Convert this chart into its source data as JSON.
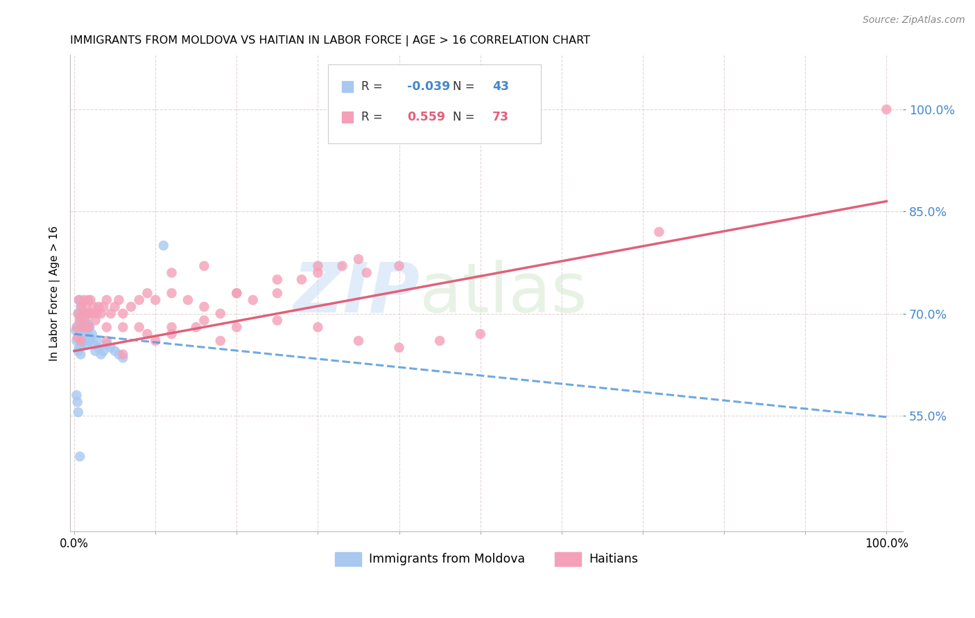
{
  "title": "IMMIGRANTS FROM MOLDOVA VS HAITIAN IN LABOR FORCE | AGE > 16 CORRELATION CHART",
  "source": "Source: ZipAtlas.com",
  "ylabel": "In Labor Force | Age > 16",
  "watermark_zip": "ZIP",
  "watermark_atlas": "atlas",
  "xlim": [
    -0.005,
    1.02
  ],
  "ylim": [
    0.38,
    1.08
  ],
  "yticks": [
    0.55,
    0.7,
    0.85,
    1.0
  ],
  "ytick_labels": [
    "55.0%",
    "70.0%",
    "85.0%",
    "100.0%"
  ],
  "xtick_vals": [
    0.0,
    0.1,
    0.2,
    0.3,
    0.4,
    0.5,
    0.6,
    0.7,
    0.8,
    0.9,
    1.0
  ],
  "xtick_labels": [
    "0.0%",
    "",
    "",
    "",
    "",
    "",
    "",
    "",
    "",
    "",
    "100.0%"
  ],
  "legend_R_moldova": "-0.039",
  "legend_N_moldova": "43",
  "legend_R_haitian": "0.559",
  "legend_N_haitian": "73",
  "color_moldova": "#a8c8f0",
  "color_haitian": "#f4a0b8",
  "line_color_moldova": "#5599dd",
  "line_color_haitian": "#e0607a",
  "moldova_line_y0": 0.67,
  "moldova_line_y1": 0.548,
  "haitian_line_y0": 0.645,
  "haitian_line_y1": 0.865,
  "moldova_x": [
    0.002,
    0.003,
    0.004,
    0.005,
    0.005,
    0.006,
    0.006,
    0.007,
    0.007,
    0.008,
    0.008,
    0.009,
    0.009,
    0.01,
    0.01,
    0.011,
    0.012,
    0.012,
    0.013,
    0.014,
    0.015,
    0.016,
    0.017,
    0.018,
    0.019,
    0.02,
    0.022,
    0.024,
    0.026,
    0.028,
    0.03,
    0.033,
    0.036,
    0.04,
    0.045,
    0.05,
    0.055,
    0.06,
    0.003,
    0.004,
    0.005,
    0.007,
    0.11
  ],
  "moldova_y": [
    0.675,
    0.66,
    0.68,
    0.645,
    0.7,
    0.65,
    0.72,
    0.67,
    0.69,
    0.64,
    0.71,
    0.655,
    0.69,
    0.665,
    0.7,
    0.68,
    0.66,
    0.7,
    0.675,
    0.685,
    0.67,
    0.655,
    0.685,
    0.66,
    0.68,
    0.665,
    0.67,
    0.655,
    0.645,
    0.66,
    0.65,
    0.64,
    0.645,
    0.655,
    0.65,
    0.645,
    0.64,
    0.635,
    0.58,
    0.57,
    0.555,
    0.49,
    0.8
  ],
  "haitian_x": [
    0.003,
    0.004,
    0.005,
    0.006,
    0.007,
    0.008,
    0.009,
    0.01,
    0.011,
    0.012,
    0.013,
    0.014,
    0.015,
    0.016,
    0.017,
    0.018,
    0.019,
    0.02,
    0.022,
    0.024,
    0.026,
    0.028,
    0.03,
    0.033,
    0.036,
    0.04,
    0.045,
    0.05,
    0.055,
    0.06,
    0.07,
    0.08,
    0.09,
    0.1,
    0.12,
    0.14,
    0.16,
    0.18,
    0.2,
    0.22,
    0.25,
    0.28,
    0.3,
    0.33,
    0.36,
    0.4,
    0.35,
    0.4,
    0.45,
    0.5,
    0.04,
    0.06,
    0.08,
    0.1,
    0.12,
    0.15,
    0.18,
    0.2,
    0.25,
    0.3,
    0.12,
    0.16,
    0.2,
    0.25,
    0.3,
    0.35,
    0.04,
    0.06,
    0.09,
    0.12,
    0.16,
    0.72,
    1.0
  ],
  "haitian_y": [
    0.68,
    0.665,
    0.7,
    0.72,
    0.69,
    0.66,
    0.71,
    0.68,
    0.7,
    0.72,
    0.69,
    0.71,
    0.68,
    0.7,
    0.72,
    0.68,
    0.7,
    0.72,
    0.7,
    0.71,
    0.69,
    0.7,
    0.71,
    0.7,
    0.71,
    0.72,
    0.7,
    0.71,
    0.72,
    0.7,
    0.71,
    0.72,
    0.73,
    0.72,
    0.73,
    0.72,
    0.71,
    0.7,
    0.73,
    0.72,
    0.73,
    0.75,
    0.76,
    0.77,
    0.76,
    0.77,
    0.66,
    0.65,
    0.66,
    0.67,
    0.68,
    0.64,
    0.68,
    0.66,
    0.67,
    0.68,
    0.66,
    0.68,
    0.69,
    0.68,
    0.76,
    0.77,
    0.73,
    0.75,
    0.77,
    0.78,
    0.66,
    0.68,
    0.67,
    0.68,
    0.69,
    0.82,
    1.0
  ]
}
